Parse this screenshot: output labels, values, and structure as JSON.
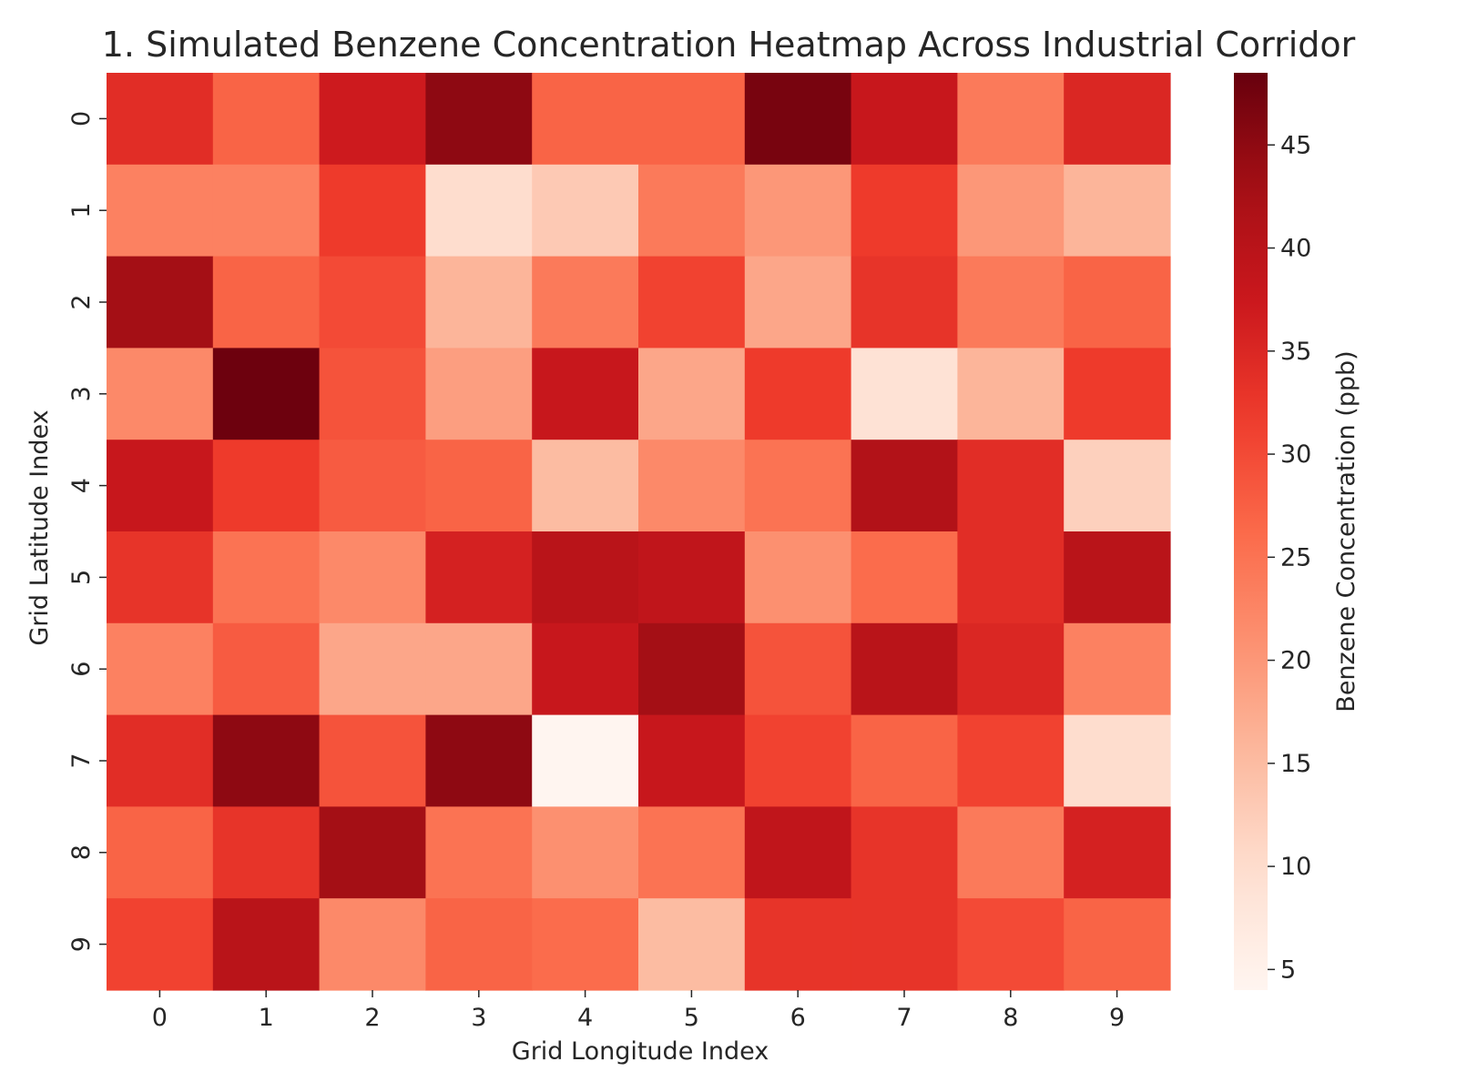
{
  "chart_data": {
    "type": "heatmap",
    "title": "1. Simulated Benzene Concentration Heatmap Across Industrial Corridor",
    "xlabel": "Grid Longitude Index",
    "ylabel": "Grid Latitude Index",
    "x_ticks": [
      "0",
      "1",
      "2",
      "3",
      "4",
      "5",
      "6",
      "7",
      "8",
      "9"
    ],
    "y_ticks": [
      "0",
      "1",
      "2",
      "3",
      "4",
      "5",
      "6",
      "7",
      "8",
      "9"
    ],
    "colorbar": {
      "label": "Benzene Concentration (ppb)",
      "ticks": [
        "5",
        "10",
        "15",
        "20",
        "25",
        "30",
        "35",
        "40",
        "45"
      ],
      "tick_values": [
        5,
        10,
        15,
        20,
        25,
        30,
        35,
        40,
        45
      ],
      "vmin": 4,
      "vmax": 48.5,
      "colormap": "Reds"
    },
    "values": [
      [
        34,
        27,
        37,
        45,
        27,
        27,
        47,
        38,
        24,
        35
      ],
      [
        23,
        23,
        32,
        10,
        13,
        24,
        20,
        32,
        20,
        16
      ],
      [
        43,
        27,
        30,
        16,
        24,
        31,
        18,
        33,
        24,
        27
      ],
      [
        22,
        48,
        29,
        19,
        38,
        18,
        32,
        9,
        16,
        32
      ],
      [
        38,
        32,
        28,
        27,
        15,
        22,
        25,
        41,
        34,
        12
      ],
      [
        33,
        25,
        22,
        36,
        40,
        39,
        21,
        26,
        34,
        40
      ],
      [
        23,
        28,
        18,
        18,
        38,
        43,
        29,
        40,
        35,
        23
      ],
      [
        34,
        45,
        29,
        45,
        4,
        38,
        31,
        27,
        31,
        10
      ],
      [
        27,
        33,
        43,
        25,
        21,
        25,
        39,
        33,
        24,
        36
      ],
      [
        31,
        40,
        22,
        27,
        26,
        15,
        33,
        33,
        30,
        27
      ]
    ]
  }
}
